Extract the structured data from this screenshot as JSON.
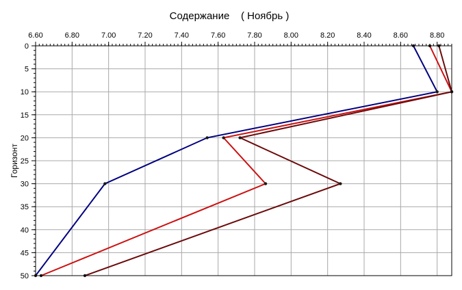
{
  "chart_data": {
    "type": "line",
    "title": "Содержание    ( Ноябрь )",
    "ylabel": "Горизонт",
    "xlabel": "",
    "xlim": [
      6.6,
      8.88
    ],
    "ylim": [
      0,
      50
    ],
    "y_inverted": true,
    "x_axis_position": "top",
    "grid": true,
    "legend": "none",
    "x_tick_labels": [
      "6.60",
      "6.80",
      "7.00",
      "7.20",
      "7.40",
      "7.60",
      "7.80",
      "8.00",
      "8.20",
      "8.40",
      "8.60",
      "8.80"
    ],
    "x_ticks": [
      6.6,
      6.8,
      7.0,
      7.2,
      7.4,
      7.6,
      7.8,
      8.0,
      8.2,
      8.4,
      8.6,
      8.8
    ],
    "y_ticks": [
      0,
      5,
      10,
      15,
      20,
      25,
      30,
      35,
      40,
      45,
      50
    ],
    "series": [
      {
        "color": "#000080",
        "points": [
          [
            8.67,
            0
          ],
          [
            8.8,
            10
          ],
          [
            7.54,
            20
          ],
          [
            6.98,
            30
          ],
          [
            6.6,
            50
          ]
        ]
      },
      {
        "color": "#cc1010",
        "points": [
          [
            8.76,
            0
          ],
          [
            8.88,
            10
          ],
          [
            7.63,
            20
          ],
          [
            7.86,
            30
          ],
          [
            6.63,
            50
          ]
        ]
      },
      {
        "color": "#6b0a0a",
        "points": [
          [
            8.81,
            0
          ],
          [
            8.88,
            10
          ],
          [
            7.72,
            20
          ],
          [
            8.27,
            30
          ],
          [
            6.87,
            50
          ]
        ]
      }
    ]
  }
}
